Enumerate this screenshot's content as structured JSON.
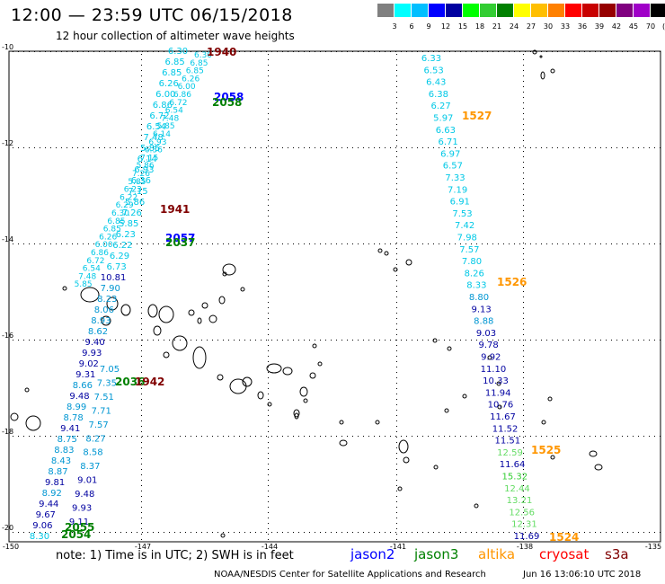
{
  "header": {
    "title": "12:00 — 23:59 UTC 06/15/2018",
    "subtitle": "12 hour collection of altimeter wave heights"
  },
  "color_scale": {
    "colors": [
      "#808080",
      "#00ffff",
      "#00bfff",
      "#0000ff",
      "#0000a0",
      "#00ff00",
      "#32cd32",
      "#008000",
      "#ffff00",
      "#ffbf00",
      "#ff8000",
      "#ff0000",
      "#c80000",
      "#960000",
      "#800080",
      "#a000c8",
      "#000000"
    ],
    "labels": [
      "3",
      "6",
      "9",
      "12",
      "15",
      "18",
      "21",
      "24",
      "27",
      "30",
      "33",
      "36",
      "39",
      "42",
      "45",
      "70",
      "(ft)"
    ]
  },
  "axes": {
    "lat_labels": [
      "-10",
      "-12",
      "-14",
      "-16",
      "-18",
      "-20"
    ],
    "lon_labels": [
      "-150",
      "-147",
      "-144",
      "-141",
      "-138",
      "-135"
    ]
  },
  "track_colors": {
    "light": "#00c8e6",
    "mid": "#0096d2",
    "navy": "#0000a0",
    "blue": "#0000ff",
    "green": "#32cd32",
    "lightgreen": "#64dc64",
    "darkgreen": "#008000",
    "orange": "#ff9600",
    "maroon": "#800000"
  },
  "tracks": {
    "east": [
      {
        "v": "6.33",
        "c": "light"
      },
      {
        "v": "6.53",
        "c": "light"
      },
      {
        "v": "6.43",
        "c": "light"
      },
      {
        "v": "6.38",
        "c": "light"
      },
      {
        "v": "6.27",
        "c": "light"
      },
      {
        "v": "5.97",
        "c": "light"
      },
      {
        "v": "6.63",
        "c": "light"
      },
      {
        "v": "6.71",
        "c": "light"
      },
      {
        "v": "6.97",
        "c": "light"
      },
      {
        "v": "6.57",
        "c": "light"
      },
      {
        "v": "7.33",
        "c": "light"
      },
      {
        "v": "7.19",
        "c": "light"
      },
      {
        "v": "6.91",
        "c": "light"
      },
      {
        "v": "7.53",
        "c": "light"
      },
      {
        "v": "7.42",
        "c": "light"
      },
      {
        "v": "7.98",
        "c": "light"
      },
      {
        "v": "7.57",
        "c": "light"
      },
      {
        "v": "7.80",
        "c": "light"
      },
      {
        "v": "8.26",
        "c": "light"
      },
      {
        "v": "8.33",
        "c": "light"
      },
      {
        "v": "8.80",
        "c": "mid"
      },
      {
        "v": "9.13",
        "c": "navy"
      },
      {
        "v": "8.88",
        "c": "mid"
      },
      {
        "v": "9.03",
        "c": "navy"
      },
      {
        "v": "9.78",
        "c": "navy"
      },
      {
        "v": "9.92",
        "c": "navy"
      },
      {
        "v": "11.10",
        "c": "navy"
      },
      {
        "v": "10.33",
        "c": "navy"
      },
      {
        "v": "11.94",
        "c": "navy"
      },
      {
        "v": "10.76",
        "c": "navy"
      },
      {
        "v": "11.67",
        "c": "navy"
      },
      {
        "v": "11.52",
        "c": "navy"
      },
      {
        "v": "11.51",
        "c": "navy"
      },
      {
        "v": "12.59",
        "c": "lightgreen"
      },
      {
        "v": "11.64",
        "c": "navy"
      },
      {
        "v": "15.32",
        "c": "green"
      },
      {
        "v": "12.44",
        "c": "lightgreen"
      },
      {
        "v": "13.21",
        "c": "lightgreen"
      },
      {
        "v": "12.56",
        "c": "lightgreen"
      },
      {
        "v": "12.31",
        "c": "lightgreen"
      },
      {
        "v": "11.69",
        "c": "navy"
      }
    ],
    "west": [
      {
        "v": "6.30",
        "c": "light"
      },
      {
        "v": "6.85",
        "c": "light"
      },
      {
        "v": "6.85",
        "c": "light"
      },
      {
        "v": "6.26",
        "c": "light"
      },
      {
        "v": "6.00",
        "c": "light"
      },
      {
        "v": "6.86",
        "c": "light"
      },
      {
        "v": "6.72",
        "c": "light"
      },
      {
        "v": "6.54",
        "c": "light"
      },
      {
        "v": "7.48",
        "c": "light"
      },
      {
        "v": "5.85",
        "c": "light"
      },
      {
        "v": "6.14",
        "c": "light"
      },
      {
        "v": "6.93",
        "c": "light"
      },
      {
        "v": "6.36",
        "c": "light"
      },
      {
        "v": "7.15",
        "c": "light"
      },
      {
        "v": "5.86",
        "c": "light"
      },
      {
        "v": "7.26",
        "c": "light"
      },
      {
        "v": "5.85",
        "c": "light"
      },
      {
        "v": "6.23",
        "c": "light"
      },
      {
        "v": "6.22",
        "c": "light"
      },
      {
        "v": "6.29",
        "c": "light"
      },
      {
        "v": "6.73",
        "c": "light"
      },
      {
        "v": "10.81",
        "c": "navy"
      },
      {
        "v": "7.90",
        "c": "mid"
      },
      {
        "v": "8.23",
        "c": "mid"
      },
      {
        "v": "8.06",
        "c": "mid"
      },
      {
        "v": "8.93",
        "c": "mid"
      },
      {
        "v": "8.62",
        "c": "mid"
      },
      {
        "v": "9.40",
        "c": "navy"
      },
      {
        "v": "9.93",
        "c": "navy"
      },
      {
        "v": "9.02",
        "c": "navy"
      },
      {
        "v": "9.31",
        "c": "navy"
      },
      {
        "v": "8.66",
        "c": "mid"
      },
      {
        "v": "9.48",
        "c": "navy"
      },
      {
        "v": "8.99",
        "c": "mid"
      },
      {
        "v": "8.78",
        "c": "mid"
      },
      {
        "v": "9.41",
        "c": "navy"
      },
      {
        "v": "8.75",
        "c": "mid"
      },
      {
        "v": "8.83",
        "c": "mid"
      },
      {
        "v": "8.43",
        "c": "mid"
      },
      {
        "v": "8.87",
        "c": "mid"
      },
      {
        "v": "9.81",
        "c": "navy"
      },
      {
        "v": "8.92",
        "c": "mid"
      },
      {
        "v": "9.44",
        "c": "navy"
      },
      {
        "v": "9.67",
        "c": "navy"
      },
      {
        "v": "9.06",
        "c": "navy"
      },
      {
        "v": "8.30",
        "c": "light"
      }
    ],
    "west_inner": [
      {
        "v": "7.05",
        "c": "mid"
      },
      {
        "v": "7.35",
        "c": "mid"
      },
      {
        "v": "7.51",
        "c": "mid"
      },
      {
        "v": "7.71",
        "c": "mid"
      },
      {
        "v": "7.57",
        "c": "mid"
      },
      {
        "v": "8.27",
        "c": "mid"
      },
      {
        "v": "8.58",
        "c": "mid"
      },
      {
        "v": "8.37",
        "c": "mid"
      },
      {
        "v": "9.01",
        "c": "navy"
      },
      {
        "v": "9.48",
        "c": "navy"
      },
      {
        "v": "9.93",
        "c": "navy"
      },
      {
        "v": "9.11",
        "c": "navy"
      }
    ]
  },
  "pass_labels": [
    {
      "t": "1940",
      "c": "maroon"
    },
    {
      "t": "2058",
      "c": "blue"
    },
    {
      "t": "2058",
      "c": "darkgreen"
    },
    {
      "t": "1527",
      "c": "orange"
    },
    {
      "t": "1941",
      "c": "maroon"
    },
    {
      "t": "2057",
      "c": "blue"
    },
    {
      "t": "2037",
      "c": "darkgreen"
    },
    {
      "t": "1526",
      "c": "orange"
    },
    {
      "t": "2036",
      "c": "darkgreen"
    },
    {
      "t": "1942",
      "c": "maroon"
    },
    {
      "t": "1525",
      "c": "orange"
    },
    {
      "t": "2055",
      "c": "darkgreen"
    },
    {
      "t": "2054",
      "c": "darkgreen"
    },
    {
      "t": "1524",
      "c": "orange"
    }
  ],
  "legend": {
    "note": "note: 1) Time is in UTC; 2) SWH is in feet",
    "satellites": [
      {
        "name": "jason2",
        "color": "#0000ff"
      },
      {
        "name": "jason3",
        "color": "#008000"
      },
      {
        "name": "altika",
        "color": "#ff9600"
      },
      {
        "name": "cryosat",
        "color": "#ff0000"
      },
      {
        "name": "s3a",
        "color": "#800000"
      }
    ]
  },
  "footer": {
    "credit": "NOAA/NESDIS Center for Satellite Applications and Research",
    "timestamp": "Jun 16 13:06:10 UTC 2018"
  }
}
